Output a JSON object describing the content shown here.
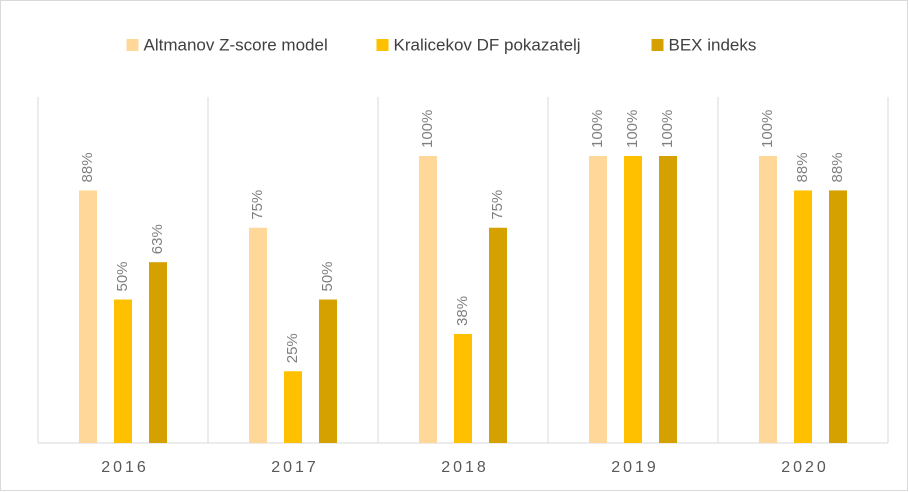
{
  "chart_data": {
    "type": "bar",
    "categories": [
      "2016",
      "2017",
      "2018",
      "2019",
      "2020"
    ],
    "series": [
      {
        "name": "Altmanov Z-score model",
        "color": "#FFD899",
        "values": [
          88,
          75,
          100,
          100,
          100
        ],
        "value_labels": [
          "88%",
          "75%",
          "100%",
          "100%",
          "100%"
        ]
      },
      {
        "name": "Kralicekov DF pokazatelj",
        "color": "#FFC000",
        "values": [
          50,
          25,
          38,
          100,
          88
        ],
        "value_labels": [
          "50%",
          "25%",
          "38%",
          "100%",
          "88%"
        ]
      },
      {
        "name": "BEX indeks",
        "color": "#D4A100",
        "values": [
          63,
          50,
          75,
          100,
          88
        ],
        "value_labels": [
          "63%",
          "50%",
          "75%",
          "100%",
          "88%"
        ]
      }
    ],
    "legend": "top"
  }
}
